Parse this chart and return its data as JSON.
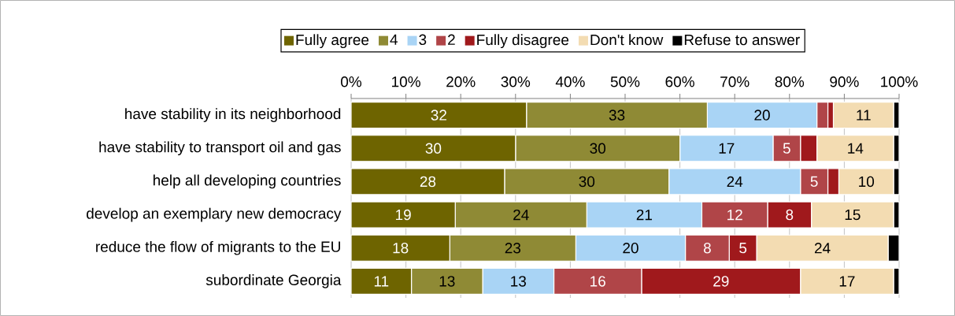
{
  "chart_data": {
    "type": "bar",
    "orientation": "horizontal",
    "stacked": true,
    "categories": [
      "have stability in its neighborhood",
      "have stability to transport oil and gas",
      "help all developing countries",
      "develop an exemplary new democracy",
      "reduce the flow of migrants to the EU",
      "subordinate Georgia"
    ],
    "series": [
      {
        "name": "Fully agree",
        "color": "#6e6400",
        "values": [
          32,
          30,
          28,
          19,
          18,
          11
        ],
        "value_labels": [
          "32",
          "30",
          "28",
          "19",
          "18",
          "11"
        ]
      },
      {
        "name": "4",
        "color": "#8f8a35",
        "values": [
          33,
          30,
          30,
          24,
          23,
          13
        ],
        "value_labels": [
          "33",
          "30",
          "30",
          "24",
          "23",
          "13"
        ]
      },
      {
        "name": "3",
        "color": "#a9d4f5",
        "values": [
          20,
          17,
          24,
          21,
          20,
          13
        ],
        "value_labels": [
          "20",
          "17",
          "24",
          "21",
          "20",
          "13"
        ]
      },
      {
        "name": "2",
        "color": "#b04548",
        "values": [
          2,
          5,
          5,
          12,
          8,
          16
        ],
        "value_labels": [
          null,
          "5",
          "5",
          "12",
          "8",
          "16"
        ]
      },
      {
        "name": "Fully disagree",
        "color": "#a0191c",
        "values": [
          1,
          3,
          2,
          8,
          5,
          29
        ],
        "value_labels": [
          null,
          null,
          null,
          "8",
          "5",
          "29"
        ]
      },
      {
        "name": "Don't know",
        "color": "#f3dcb2",
        "values": [
          11,
          14,
          10,
          15,
          24,
          17
        ],
        "value_labels": [
          "11",
          "14",
          "10",
          "15",
          "24",
          "17"
        ]
      },
      {
        "name": "Refuse to answer",
        "color": "#000000",
        "values": [
          1,
          1,
          1,
          1,
          2,
          1
        ]
      }
    ],
    "xlim": [
      0,
      100
    ],
    "xticks": [
      {
        "value": 0,
        "label": "0%"
      },
      {
        "value": 10,
        "label": "10%"
      },
      {
        "value": 20,
        "label": "20%"
      },
      {
        "value": 30,
        "label": "30%"
      },
      {
        "value": 40,
        "label": "40%"
      },
      {
        "value": 50,
        "label": "50%"
      },
      {
        "value": 60,
        "label": "60%"
      },
      {
        "value": 70,
        "label": "70%"
      },
      {
        "value": 80,
        "label": "80%"
      },
      {
        "value": 90,
        "label": "90%"
      },
      {
        "value": 100,
        "label": "100%"
      }
    ],
    "grid": "x",
    "legend": "top"
  }
}
